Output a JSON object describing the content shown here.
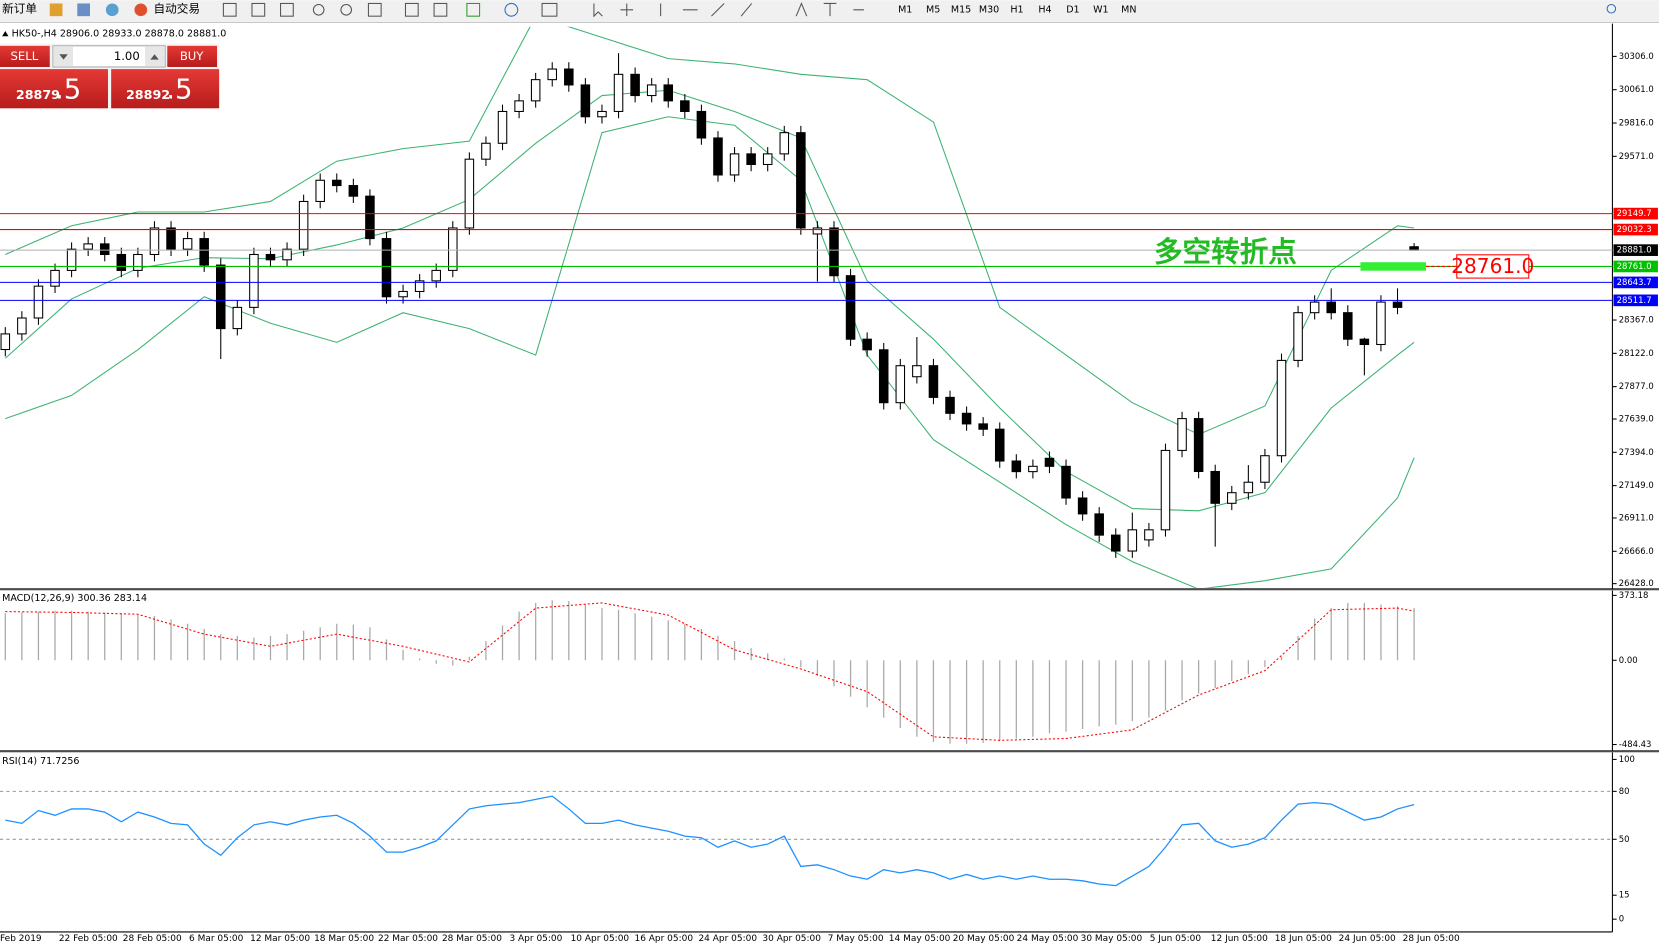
{
  "toolbar": {
    "new_order": "新订单",
    "auto_trading": "自动交易",
    "timeframes": [
      "M1",
      "M5",
      "M15",
      "M30",
      "H1",
      "H4",
      "D1",
      "W1",
      "MN"
    ]
  },
  "trade_panel": {
    "sell": "SELL",
    "buy": "BUY",
    "lots": "1.00",
    "sell_price": "28879",
    "sell_fraction": ".5",
    "buy_price": "28892",
    "buy_fraction": ".5"
  },
  "time_axis": {
    "labels": [
      "Feb 2019",
      "22 Feb 05:00",
      "28 Feb 05:00",
      "6 Mar 05:00",
      "12 Mar 05:00",
      "18 Mar 05:00",
      "22 Mar 05:00",
      "28 Mar 05:00",
      "3 Apr 05:00",
      "10 Apr 05:00",
      "16 Apr 05:00",
      "24 Apr 05:00",
      "30 Apr 05:00",
      "7 May 05:00",
      "14 May 05:00",
      "20 May 05:00",
      "24 May 05:00",
      "30 May 05:00",
      "5 Jun 05:00",
      "12 Jun 05:00",
      "18 Jun 05:00",
      "24 Jun 05:00",
      "28 Jun 05:00"
    ]
  },
  "chart_data": [
    {
      "type": "candlestick",
      "title": "HK50-,H4  28906.0 28933.0 28878.0 28881.0",
      "open": [
        28150,
        28265,
        28382,
        28616,
        28732,
        28888,
        28927,
        28849,
        28732,
        28849,
        29044,
        28888,
        28966,
        28771,
        28304,
        28460,
        28849,
        28810,
        28888,
        29239,
        29395,
        29356,
        29278,
        28966,
        28538,
        28577,
        28655,
        28732,
        29044,
        29550,
        29667,
        29901,
        29979,
        30135,
        30213,
        30096,
        29862,
        29901,
        30174,
        30018,
        30096,
        29979,
        29901,
        29706,
        29434,
        29589,
        29511,
        29589,
        29745,
        29000,
        29044,
        28693,
        28226,
        28148,
        27759,
        27950,
        28031,
        27798,
        27681,
        27603,
        27564,
        27330,
        27252,
        27350,
        27291,
        27058,
        26941,
        26785,
        26668,
        26750,
        26824,
        27408,
        27642,
        27253,
        27019,
        27097,
        27174,
        27369,
        28070,
        28421,
        28499,
        28421,
        28226,
        28187,
        28499,
        28906
      ],
      "high": [
        28315,
        28432,
        28666,
        28782,
        28938,
        28977,
        28977,
        28899,
        28899,
        29094,
        29094,
        29016,
        29016,
        28821,
        28510,
        28899,
        28899,
        28938,
        29289,
        29445,
        29445,
        29406,
        29328,
        29016,
        28627,
        28705,
        28782,
        29094,
        29600,
        29717,
        29951,
        30029,
        30185,
        30263,
        30263,
        30146,
        29951,
        30330,
        30224,
        30146,
        30146,
        30029,
        29951,
        29756,
        29639,
        29639,
        29639,
        29795,
        29795,
        29094,
        29094,
        28743,
        28276,
        28198,
        28081,
        28242,
        28081,
        27848,
        27731,
        27653,
        27614,
        27380,
        27341,
        27400,
        27341,
        27108,
        26991,
        26835,
        26950,
        26874,
        27458,
        27692,
        27692,
        27303,
        27147,
        27300,
        27419,
        28120,
        28471,
        28549,
        28600,
        28476,
        28237,
        28549,
        28600,
        28933
      ],
      "low": [
        28100,
        28215,
        28332,
        28566,
        28682,
        28838,
        28799,
        28682,
        28682,
        28799,
        28838,
        28838,
        28721,
        28080,
        28254,
        28410,
        28760,
        28760,
        28838,
        29189,
        29306,
        29228,
        28916,
        28488,
        28488,
        28527,
        28605,
        28682,
        28994,
        29500,
        29617,
        29851,
        29929,
        30085,
        30046,
        29812,
        29812,
        29851,
        29968,
        29968,
        29929,
        29851,
        29656,
        29384,
        29384,
        29461,
        29461,
        29539,
        28994,
        28650,
        28643,
        28176,
        28098,
        27709,
        27709,
        27900,
        27748,
        27631,
        27553,
        27514,
        27280,
        27202,
        27202,
        27241,
        27008,
        26891,
        26735,
        26618,
        26618,
        26700,
        26774,
        27358,
        27203,
        26700,
        26969,
        27047,
        27124,
        27319,
        28020,
        28371,
        28371,
        28176,
        27960,
        28137,
        28410,
        28878
      ],
      "close": [
        28265,
        28382,
        28616,
        28732,
        28888,
        28927,
        28849,
        28732,
        28849,
        29044,
        28888,
        28966,
        28771,
        28304,
        28460,
        28849,
        28810,
        28888,
        29239,
        29395,
        29356,
        29278,
        28966,
        28538,
        28577,
        28655,
        28732,
        29044,
        29550,
        29667,
        29901,
        29979,
        30135,
        30213,
        30096,
        29862,
        29901,
        30174,
        30018,
        30096,
        29979,
        29901,
        29706,
        29434,
        29589,
        29511,
        29589,
        29745,
        29044,
        29044,
        28693,
        28226,
        28148,
        27759,
        28031,
        28031,
        27798,
        27681,
        27603,
        27564,
        27330,
        27252,
        27291,
        27291,
        27058,
        26941,
        26785,
        26668,
        26824,
        26824,
        27408,
        27642,
        27253,
        27019,
        27097,
        27174,
        27369,
        28070,
        28421,
        28499,
        28421,
        28226,
        28187,
        28499,
        28460,
        28881
      ],
      "up_color": "#ffffff",
      "down_color": "#000000",
      "bollinger": {
        "color": "#3cb371",
        "x": [
          0,
          4,
          8,
          12,
          16,
          20,
          24,
          28,
          32,
          36,
          40,
          44,
          48,
          52,
          56,
          60,
          64,
          68,
          72,
          76,
          80,
          84,
          85
        ],
        "upper": [
          28849,
          29060,
          29161,
          29161,
          29239,
          29535,
          29628,
          29683,
          30602,
          30446,
          30290,
          30251,
          30174,
          30135,
          29823,
          28460,
          28109,
          27759,
          27525,
          27735,
          28732,
          29060,
          29044
        ],
        "middle": [
          28086,
          28522,
          28748,
          28826,
          28818,
          28919,
          29044,
          29254,
          29667,
          30018,
          30057,
          29901,
          29706,
          28655,
          28226,
          27720,
          27252,
          26980,
          26964,
          27097,
          27720,
          28109,
          28203
        ],
        "lower": [
          27642,
          27813,
          28148,
          28538,
          28343,
          28203,
          28421,
          28304,
          28109,
          29745,
          29862,
          29800,
          29395,
          28109,
          27486,
          27174,
          26863,
          26590,
          26388,
          26450,
          26536,
          27058,
          27354
        ]
      },
      "levels": [
        {
          "value": 29149.7,
          "label": "29149.7",
          "color": "#ff0000"
        },
        {
          "value": 29032.3,
          "label": "29032.3",
          "color": "#ff0000"
        },
        {
          "value": 28881.0,
          "label": "28881.0",
          "color": "#000000"
        },
        {
          "value": 28761.0,
          "label": "28761.0",
          "color": "#00c000"
        },
        {
          "value": 28643.7,
          "label": "28643.7",
          "color": "#0000ff"
        },
        {
          "value": 28511.7,
          "label": "28511.7",
          "color": "#0000ff"
        }
      ],
      "annotation": {
        "text": "多空转折点",
        "price": 28761.0,
        "price_label": "28761.0",
        "color": "#22bb22"
      },
      "ylim": [
        26397,
        30524
      ],
      "yticks": [
        {
          "value": 30306,
          "label": "30306.0"
        },
        {
          "value": 30061,
          "label": "30061.0"
        },
        {
          "value": 29816,
          "label": "29816.0"
        },
        {
          "value": 29571,
          "label": "29571.0"
        },
        {
          "value": 28367,
          "label": "28367.0"
        },
        {
          "value": 28122,
          "label": "28122.0"
        },
        {
          "value": 27877,
          "label": "27877.0"
        },
        {
          "value": 27639,
          "label": "27639.0"
        },
        {
          "value": 27394,
          "label": "27394.0"
        },
        {
          "value": 27149,
          "label": "27149.0"
        },
        {
          "value": 26911,
          "label": "26911.0"
        },
        {
          "value": 26666,
          "label": "26666.0"
        },
        {
          "value": 26428,
          "label": "26428.0"
        }
      ]
    },
    {
      "type": "macd",
      "title": "MACD(12,26,9) 300.36 283.14",
      "color": "#a9a9a9",
      "signal_color": "#ff0000",
      "histogram": [
        270,
        275,
        280,
        285,
        285,
        280,
        275,
        270,
        265,
        255,
        235,
        210,
        180,
        150,
        140,
        130,
        140,
        150,
        170,
        190,
        210,
        205,
        190,
        120,
        60,
        10,
        -20,
        -30,
        20,
        110,
        200,
        280,
        330,
        345,
        340,
        320,
        300,
        290,
        270,
        250,
        230,
        210,
        180,
        140,
        110,
        70,
        40,
        10,
        -40,
        -90,
        -150,
        -210,
        -270,
        -330,
        -390,
        -440,
        -470,
        -480,
        -480,
        -475,
        -465,
        -450,
        -440,
        -420,
        -410,
        -395,
        -380,
        -370,
        -350,
        -330,
        -290,
        -230,
        -190,
        -160,
        -120,
        -80,
        -40,
        20,
        140,
        240,
        300,
        330,
        330,
        320,
        310,
        300
      ],
      "signal": {
        "x": [
          0,
          4,
          8,
          12,
          16,
          20,
          24,
          28,
          32,
          36,
          40,
          44,
          48,
          52,
          56,
          60,
          64,
          68,
          72,
          76,
          80,
          84,
          85
        ],
        "values": [
          280,
          275,
          265,
          150,
          80,
          150,
          80,
          -10,
          300,
          330,
          260,
          60,
          -50,
          -180,
          -440,
          -460,
          -450,
          -400,
          -200,
          -60,
          290,
          300,
          283
        ]
      },
      "ylim": [
        -515,
        398
      ],
      "yticks": [
        373.18,
        {
          "value": 0,
          "label": "0.00"
        },
        -484.43
      ]
    },
    {
      "type": "rsi",
      "title": "RSI(14) 71.7256",
      "color": "#1e90ff",
      "values": [
        62,
        60,
        68,
        65,
        69,
        69,
        67,
        61,
        67,
        64,
        60,
        59,
        47,
        40,
        51,
        59,
        61,
        59,
        62,
        64,
        65,
        60,
        52,
        42,
        42,
        45,
        49,
        59,
        69,
        71,
        72,
        73,
        75,
        77,
        69,
        60,
        60,
        62,
        59,
        57,
        55,
        52,
        51,
        45,
        49,
        45,
        47,
        52,
        33,
        34,
        31,
        27,
        25,
        31,
        29,
        31,
        29,
        25,
        28,
        25,
        27,
        25,
        27,
        25,
        25,
        24,
        22,
        21,
        27,
        33,
        45,
        59,
        60,
        49,
        45,
        47,
        51,
        62,
        72,
        73,
        72,
        67,
        62,
        64,
        69,
        71.7256
      ],
      "levels": [
        80,
        50
      ],
      "ylim": [
        -8,
        104
      ],
      "yticks": [
        100,
        80,
        50,
        15,
        0
      ]
    }
  ]
}
